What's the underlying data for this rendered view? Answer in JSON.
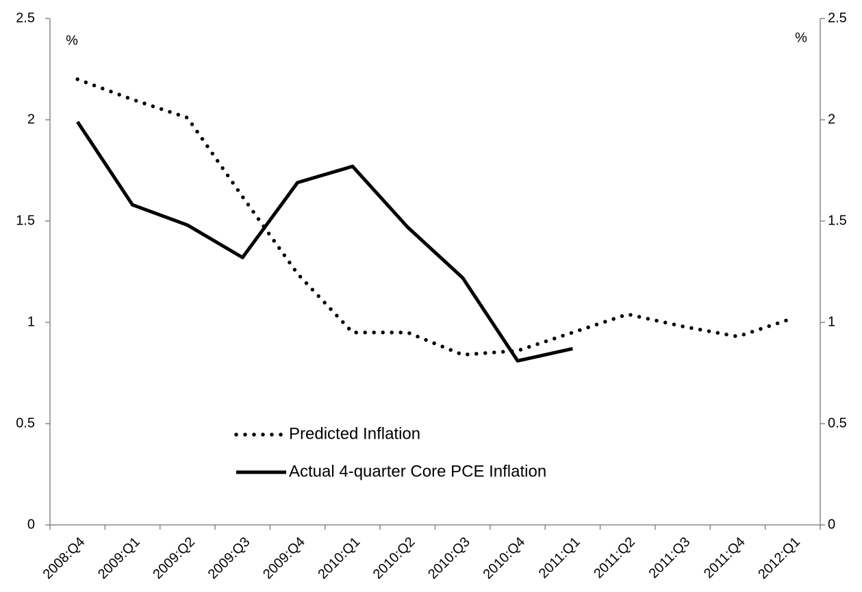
{
  "chart_data": {
    "type": "line",
    "ylabel": "%",
    "y2label": "%",
    "categories": [
      "2008:Q4",
      "2009:Q1",
      "2009:Q2",
      "2009:Q3",
      "2009:Q4",
      "2010:Q1",
      "2010:Q2",
      "2010:Q3",
      "2010:Q4",
      "2011:Q1",
      "2011:Q2",
      "2011:Q3",
      "2011:Q4",
      "2012:Q1"
    ],
    "series": [
      {
        "name": "Predicted Inflation",
        "color": "#000000",
        "style": "dotted",
        "values": [
          2.2,
          2.1,
          2.01,
          1.62,
          1.24,
          0.95,
          0.95,
          0.84,
          0.86,
          0.95,
          1.04,
          0.98,
          0.93,
          1.02
        ]
      },
      {
        "name": "Actual 4-quarter Core PCE Inflation",
        "color": "#000000",
        "style": "solid",
        "values": [
          1.99,
          1.58,
          1.48,
          1.32,
          1.69,
          1.77,
          1.47,
          1.22,
          0.81,
          0.87,
          null,
          null,
          null,
          null
        ]
      }
    ],
    "ylim": [
      0,
      2.5
    ],
    "yticks": [
      0,
      0.5,
      1,
      1.5,
      2,
      2.5
    ],
    "y2lim": [
      0,
      2.5
    ],
    "y2ticks": [
      0,
      0.5,
      1,
      1.5,
      2,
      2.5
    ],
    "grid": false,
    "legend": "bottom-left"
  }
}
